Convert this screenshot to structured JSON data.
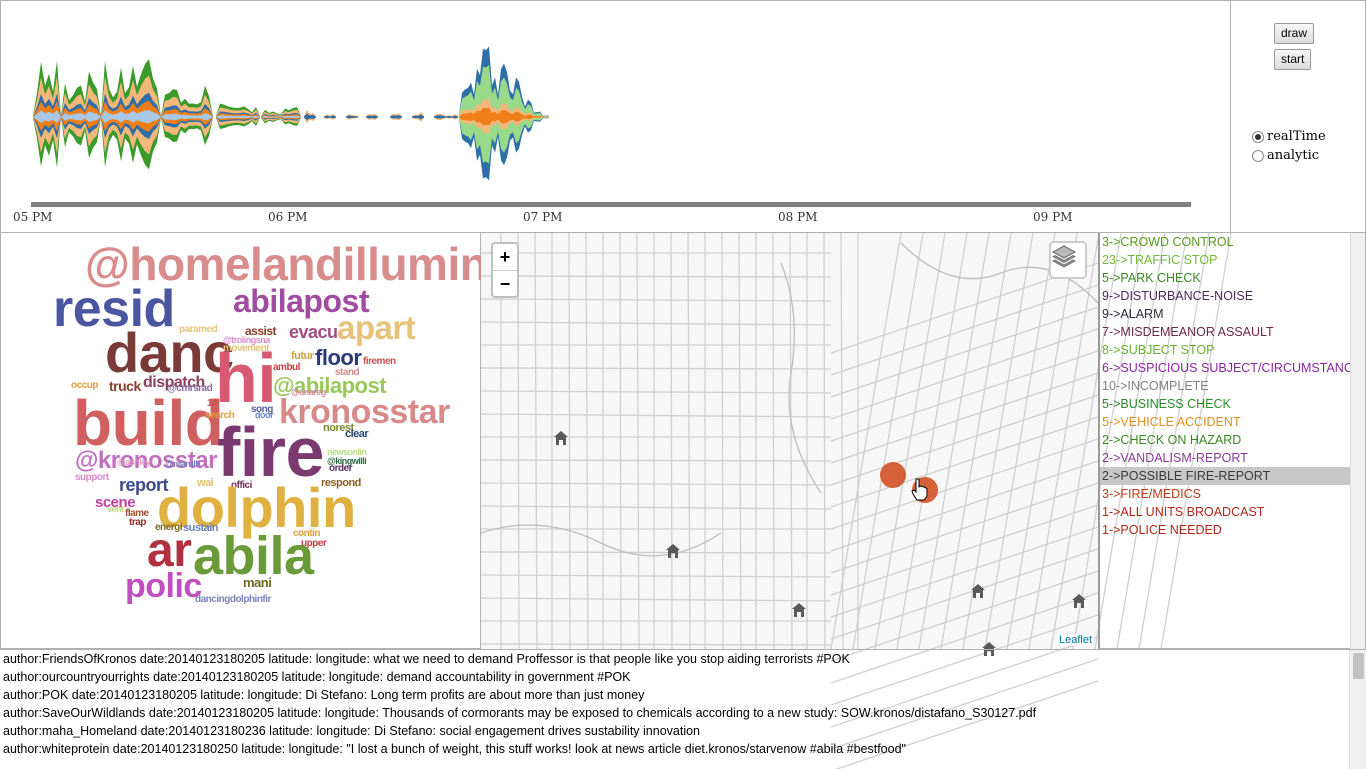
{
  "timeline": {
    "ticks": [
      "05 PM",
      "06 PM",
      "07 PM",
      "08 PM",
      "09 PM"
    ],
    "colors": {
      "green": "#3a9a2a",
      "peach": "#f5b87a",
      "orange": "#f07f1a",
      "blue": "#2e6fa8",
      "lightgreen": "#98d98a",
      "lightblue": "#a6c8e6"
    }
  },
  "controls": {
    "draw_label": "draw",
    "start_label": "start",
    "mode_options": [
      "realTime",
      "analytic"
    ],
    "mode_selected": "realTime"
  },
  "wordcloud": [
    {
      "text": "@homelandillumin",
      "color": "#d98c8c"
    },
    {
      "text": "resid",
      "color": "#4a56a0"
    },
    {
      "text": "abilapost",
      "color": "#a04ca0"
    },
    {
      "text": "apart",
      "color": "#e6c27a"
    },
    {
      "text": "danc",
      "color": "#7a3a38"
    },
    {
      "text": "paramed",
      "color": "#e6c27a"
    },
    {
      "text": "assist",
      "color": "#8c3a2a"
    },
    {
      "text": "evacu",
      "color": "#a04c80"
    },
    {
      "text": "@trolingsna",
      "color": "#d98cd0"
    },
    {
      "text": "movement",
      "color": "#e6c27a"
    },
    {
      "text": "hi",
      "color": "#d85a72"
    },
    {
      "text": "futur",
      "color": "#c9a640"
    },
    {
      "text": "floor",
      "color": "#2a3a78"
    },
    {
      "text": "firemen",
      "color": "#c85050"
    },
    {
      "text": "ambul",
      "color": "#c84040"
    },
    {
      "text": "stand",
      "color": "#d88a8a"
    },
    {
      "text": "occup",
      "color": "#e0a040"
    },
    {
      "text": "truck",
      "color": "#8c4030"
    },
    {
      "text": "dispatch",
      "color": "#8c4060"
    },
    {
      "text": "@cmrsrad",
      "color": "#8c6aa0"
    },
    {
      "text": "@abilapost",
      "color": "#98c858"
    },
    {
      "text": "build",
      "color": "#d06060"
    },
    {
      "text": "@anareg",
      "color": "#d88aa8"
    },
    {
      "text": "14",
      "color": "#c85050"
    },
    {
      "text": "search",
      "color": "#e0a040"
    },
    {
      "text": "kronosstar",
      "color": "#d88a8a"
    },
    {
      "text": "song",
      "color": "#5060a0"
    },
    {
      "text": "door",
      "color": "#6a80c0"
    },
    {
      "text": "fire",
      "color": "#7a3a70"
    },
    {
      "text": "norest",
      "color": "#7a8a30"
    },
    {
      "text": "clear",
      "color": "#2a4a70"
    },
    {
      "text": "@kronosstar",
      "color": "#c070c0"
    },
    {
      "text": "@ashley",
      "color": "#e0a0c0"
    },
    {
      "text": "@marulh",
      "color": "#7a80c0"
    },
    {
      "text": "newsonlin",
      "color": "#b8d888"
    },
    {
      "text": "@kingwilli",
      "color": "#2a6a40"
    },
    {
      "text": "order",
      "color": "#5a3060"
    },
    {
      "text": "support",
      "color": "#d88ad0"
    },
    {
      "text": "report",
      "color": "#3a4a90"
    },
    {
      "text": "wai",
      "color": "#e0c070"
    },
    {
      "text": "offici",
      "color": "#7a3060"
    },
    {
      "text": "respond",
      "color": "#8c6020"
    },
    {
      "text": "dolphin",
      "color": "#e0b040"
    },
    {
      "text": "scene",
      "color": "#c040a0"
    },
    {
      "text": "vent",
      "color": "#b8d888"
    },
    {
      "text": "flame",
      "color": "#a05030"
    },
    {
      "text": "trap",
      "color": "#8c3030"
    },
    {
      "text": "energi",
      "color": "#7a6a20"
    },
    {
      "text": "sustain",
      "color": "#6a80c0"
    },
    {
      "text": "contin",
      "color": "#e0a040"
    },
    {
      "text": "upper",
      "color": "#c04040"
    },
    {
      "text": "ar",
      "color": "#b03040"
    },
    {
      "text": "abila",
      "color": "#6a9a3a"
    },
    {
      "text": "mani",
      "color": "#6a6a20"
    },
    {
      "text": "polic",
      "color": "#c050c0"
    },
    {
      "text": "dancingdolphinfir",
      "color": "#8080c0"
    }
  ],
  "map": {
    "zoom_in": "+",
    "zoom_out": "−",
    "attribution": "Leaflet",
    "marker_color": "#d04818"
  },
  "categories": [
    {
      "label": "3->CROWD CONTROL",
      "color": "#5a9a1a"
    },
    {
      "label": "23->TRAFFIC STOP",
      "color": "#70b838"
    },
    {
      "label": "5->PARK CHECK",
      "color": "#3a8a28"
    },
    {
      "label": "9->DISTURBANCE-NOISE",
      "color": "#4a2a5a"
    },
    {
      "label": "9->ALARM",
      "color": "#2a2a3a"
    },
    {
      "label": "7->MISDEMEANOR ASSAULT",
      "color": "#6a2a4a"
    },
    {
      "label": "8->SUBJECT STOP",
      "color": "#6ab030"
    },
    {
      "label": "6->SUSPICIOUS SUBJECT/CIRCUMSTANCE",
      "color": "#8a28a0"
    },
    {
      "label": "10->INCOMPLETE",
      "color": "#808080"
    },
    {
      "label": "5->BUSINESS CHECK",
      "color": "#2a8a28"
    },
    {
      "label": "5->VEHICLE ACCIDENT",
      "color": "#e09020"
    },
    {
      "label": "2->CHECK ON HAZARD",
      "color": "#3a8a28"
    },
    {
      "label": "2->VANDALISM-REPORT",
      "color": "#8a3a9a"
    },
    {
      "label": "2->POSSIBLE FIRE-REPORT",
      "color": "#3a3a3a"
    },
    {
      "label": "3->FIRE/MEDICS",
      "color": "#c03a18"
    },
    {
      "label": "1->ALL UNITS BROADCAST",
      "color": "#b02818"
    },
    {
      "label": "1->POLICE NEEDED",
      "color": "#b02818"
    }
  ],
  "categories_selected": "2->POSSIBLE FIRE-REPORT",
  "feed": [
    "author:FriendsOfKronos date:20140123180205 latitude: longitude: what we need to demand Proffessor is that people like you stop aiding terrorists #POK",
    "author:ourcountryourrights date:20140123180205 latitude: longitude: demand accountability in government #POK",
    "author:POK date:20140123180205 latitude: longitude: Di Stefano: Long term profits are about more than just money",
    "author:SaveOurWildlands date:20140123180205 latitude: longitude: Thousands of cormorants may be exposed to chemicals according to a new study: SOW.kronos/distafano_S30127.pdf",
    "author:maha_Homeland date:20140123180236 latitude: longitude: Di Stefano: social engagement drives sustability innovation",
    "author:whiteprotein date:20140123180250 latitude: longitude: \"I lost a bunch of weight, this stuff works! look at news article diet.kronos/starvenow #abila #bestfood\""
  ]
}
